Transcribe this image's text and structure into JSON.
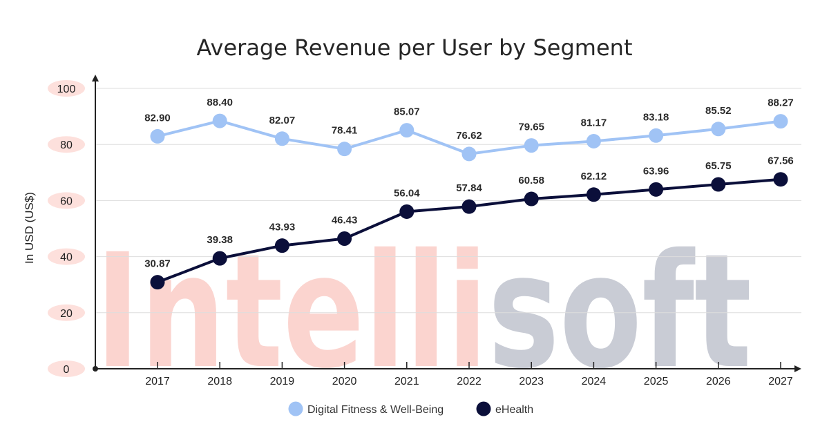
{
  "chart_data": {
    "type": "line",
    "title": "Average Revenue per User by Segment",
    "ylabel": "In  USD (US$)",
    "xlabel": "",
    "ylim": [
      0,
      100
    ],
    "yticks": [
      0,
      20,
      40,
      60,
      80,
      100
    ],
    "categories": [
      "2017",
      "2018",
      "2019",
      "2020",
      "2021",
      "2022",
      "2023",
      "2024",
      "2025",
      "2026",
      "2027"
    ],
    "series": [
      {
        "name": "Digital Fitness & Well-Being",
        "color": "#a0c3f5",
        "values": [
          82.9,
          88.4,
          82.07,
          78.41,
          85.07,
          76.62,
          79.65,
          81.17,
          83.18,
          85.52,
          88.27
        ],
        "labels": [
          "82.90",
          "88.40",
          "82.07",
          "78.41",
          "85.07",
          "76.62",
          "79.65",
          "81.17",
          "83.18",
          "85.52",
          "88.27"
        ]
      },
      {
        "name": "eHealth",
        "color": "#0b0f3a",
        "values": [
          30.87,
          39.38,
          43.93,
          46.43,
          56.04,
          57.84,
          60.58,
          62.12,
          63.96,
          65.75,
          67.56
        ],
        "labels": [
          "30.87",
          "39.38",
          "43.93",
          "46.43",
          "56.04",
          "57.84",
          "60.58",
          "62.12",
          "63.96",
          "65.75",
          "67.56"
        ]
      }
    ],
    "grid": true,
    "legend_position": "bottom-center"
  },
  "watermark": {
    "part1": "Intelli",
    "part2": "soft",
    "color1": "#fbd4cf",
    "color2": "#c9ccd5"
  },
  "colors": {
    "tick_pill": "#fde0dc",
    "axis": "#222222",
    "grid": "#dddddd"
  }
}
